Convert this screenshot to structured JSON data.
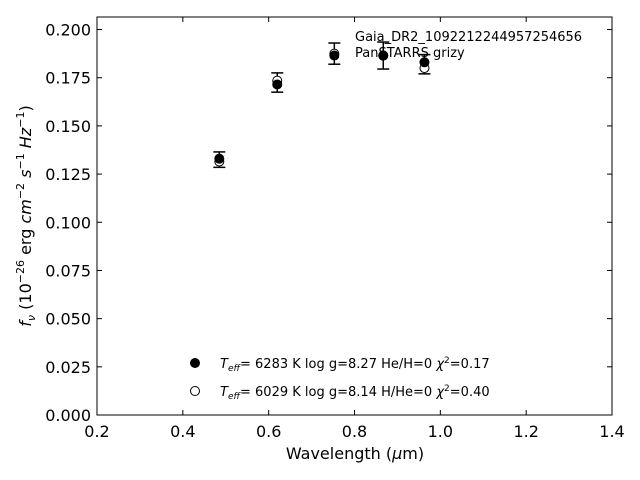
{
  "chart_data": {
    "type": "scatter",
    "xlabel": "Wavelength (μm)",
    "ylabel": "f_ν (10^-26 erg cm^-2 s^-1 Hz^-1)",
    "xlim": [
      0.2,
      1.4
    ],
    "ylim": [
      0.0,
      0.2065
    ],
    "xticks": [
      0.2,
      0.4,
      0.6,
      0.8,
      1.0,
      1.2,
      1.4
    ],
    "xtick_labels": [
      "0.2",
      "0.4",
      "0.6",
      "0.8",
      "1.0",
      "1.2",
      "1.4"
    ],
    "yticks": [
      0.0,
      0.025,
      0.05,
      0.075,
      0.1,
      0.125,
      0.15,
      0.175,
      0.2
    ],
    "ytick_labels": [
      "0.000",
      "0.025",
      "0.050",
      "0.075",
      "0.100",
      "0.125",
      "0.150",
      "0.175",
      "0.200"
    ],
    "grid": false,
    "legend_position": "bottom-center",
    "annotations": [
      "Gaia_DR2_1092212244957254656",
      "PanSTARRS grizy"
    ],
    "observed": {
      "x": [
        0.485,
        0.62,
        0.753,
        0.867,
        0.963
      ],
      "y": [
        0.1325,
        0.1725,
        0.1875,
        0.1865,
        0.182
      ],
      "yerr": [
        0.004,
        0.005,
        0.0055,
        0.007,
        0.005
      ]
    },
    "series": [
      {
        "name": "Teff= 6283 K log g=8.27 He/H=0 χ²=0.17",
        "marker": "filled-circle",
        "x": [
          0.485,
          0.62,
          0.753,
          0.867,
          0.963
        ],
        "y": [
          0.133,
          0.1715,
          0.1865,
          0.1865,
          0.183
        ]
      },
      {
        "name": "Teff= 6029 K log g=8.14 H/He=0 χ²=0.40",
        "marker": "open-circle",
        "x": [
          0.485,
          0.62,
          0.753,
          0.867,
          0.963
        ],
        "y": [
          0.1315,
          0.1735,
          0.1875,
          0.1865,
          0.18
        ]
      }
    ],
    "legend": [
      {
        "teff_value": "6283 K",
        "logg": "log g=8.27",
        "comp": "He/H=0",
        "chi": "=0.17"
      },
      {
        "teff_value": "6029 K",
        "logg": "log g=8.14",
        "comp": "H/He=0",
        "chi": "=0.40"
      }
    ]
  }
}
